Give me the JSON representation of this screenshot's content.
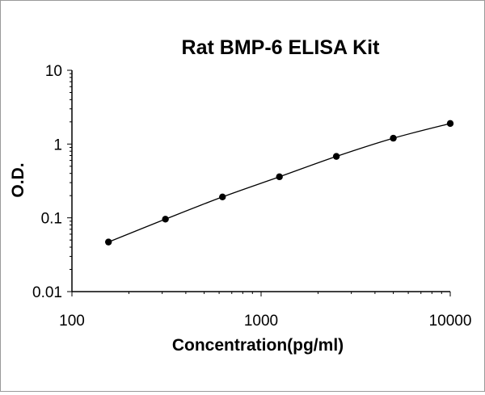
{
  "chart_data": {
    "type": "scatter",
    "title": "Rat BMP-6 ELISA Kit",
    "xlabel": "Concentration(pg/ml)",
    "ylabel": "O.D.",
    "x_scale": "log",
    "y_scale": "log",
    "xlim": [
      100,
      10000
    ],
    "ylim": [
      0.01,
      10
    ],
    "x_ticks": [
      "100",
      "1000",
      "10000"
    ],
    "y_ticks": [
      "10",
      "1",
      "0.1",
      "0.01"
    ],
    "grid": false,
    "legend": "none",
    "series": [
      {
        "x": [
          156,
          312,
          625,
          1250,
          2500,
          5000,
          10000
        ],
        "y": [
          0.047,
          0.096,
          0.192,
          0.36,
          0.68,
          1.2,
          1.9
        ],
        "marker_color": "#000000",
        "line_color": "#000000",
        "fit_line": true
      }
    ]
  }
}
